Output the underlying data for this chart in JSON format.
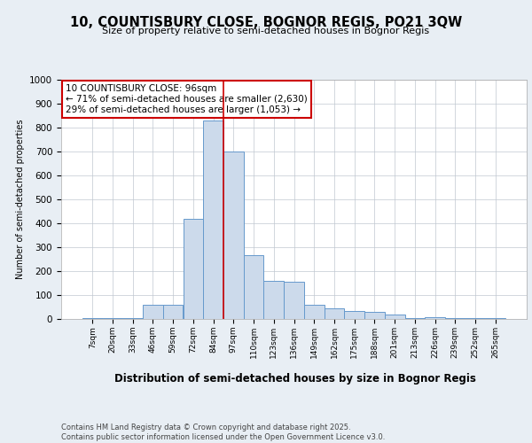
{
  "title": "10, COUNTISBURY CLOSE, BOGNOR REGIS, PO21 3QW",
  "subtitle": "Size of property relative to semi-detached houses in Bognor Regis",
  "xlabel": "Distribution of semi-detached houses by size in Bognor Regis",
  "ylabel": "Number of semi-detached properties",
  "categories": [
    "7sqm",
    "20sqm",
    "33sqm",
    "46sqm",
    "59sqm",
    "72sqm",
    "84sqm",
    "97sqm",
    "110sqm",
    "123sqm",
    "136sqm",
    "149sqm",
    "162sqm",
    "175sqm",
    "188sqm",
    "201sqm",
    "213sqm",
    "226sqm",
    "239sqm",
    "252sqm",
    "265sqm"
  ],
  "values": [
    5,
    5,
    5,
    60,
    60,
    420,
    830,
    700,
    265,
    160,
    155,
    60,
    45,
    32,
    28,
    18,
    5,
    8,
    5,
    5,
    5
  ],
  "bar_color": "#ccdaeb",
  "bar_edge_color": "#6699cc",
  "vline_index": 7,
  "vline_color": "#cc0000",
  "annotation_title": "10 COUNTISBURY CLOSE: 96sqm",
  "annotation_line1": "← 71% of semi-detached houses are smaller (2,630)",
  "annotation_line2": "29% of semi-detached houses are larger (1,053) →",
  "footer": "Contains HM Land Registry data © Crown copyright and database right 2025.\nContains public sector information licensed under the Open Government Licence v3.0.",
  "ylim": [
    0,
    1000
  ],
  "yticks": [
    0,
    100,
    200,
    300,
    400,
    500,
    600,
    700,
    800,
    900,
    1000
  ],
  "bg_color": "#e8eef4",
  "plot_bg_color": "#ffffff",
  "grid_color": "#c0c8d0"
}
